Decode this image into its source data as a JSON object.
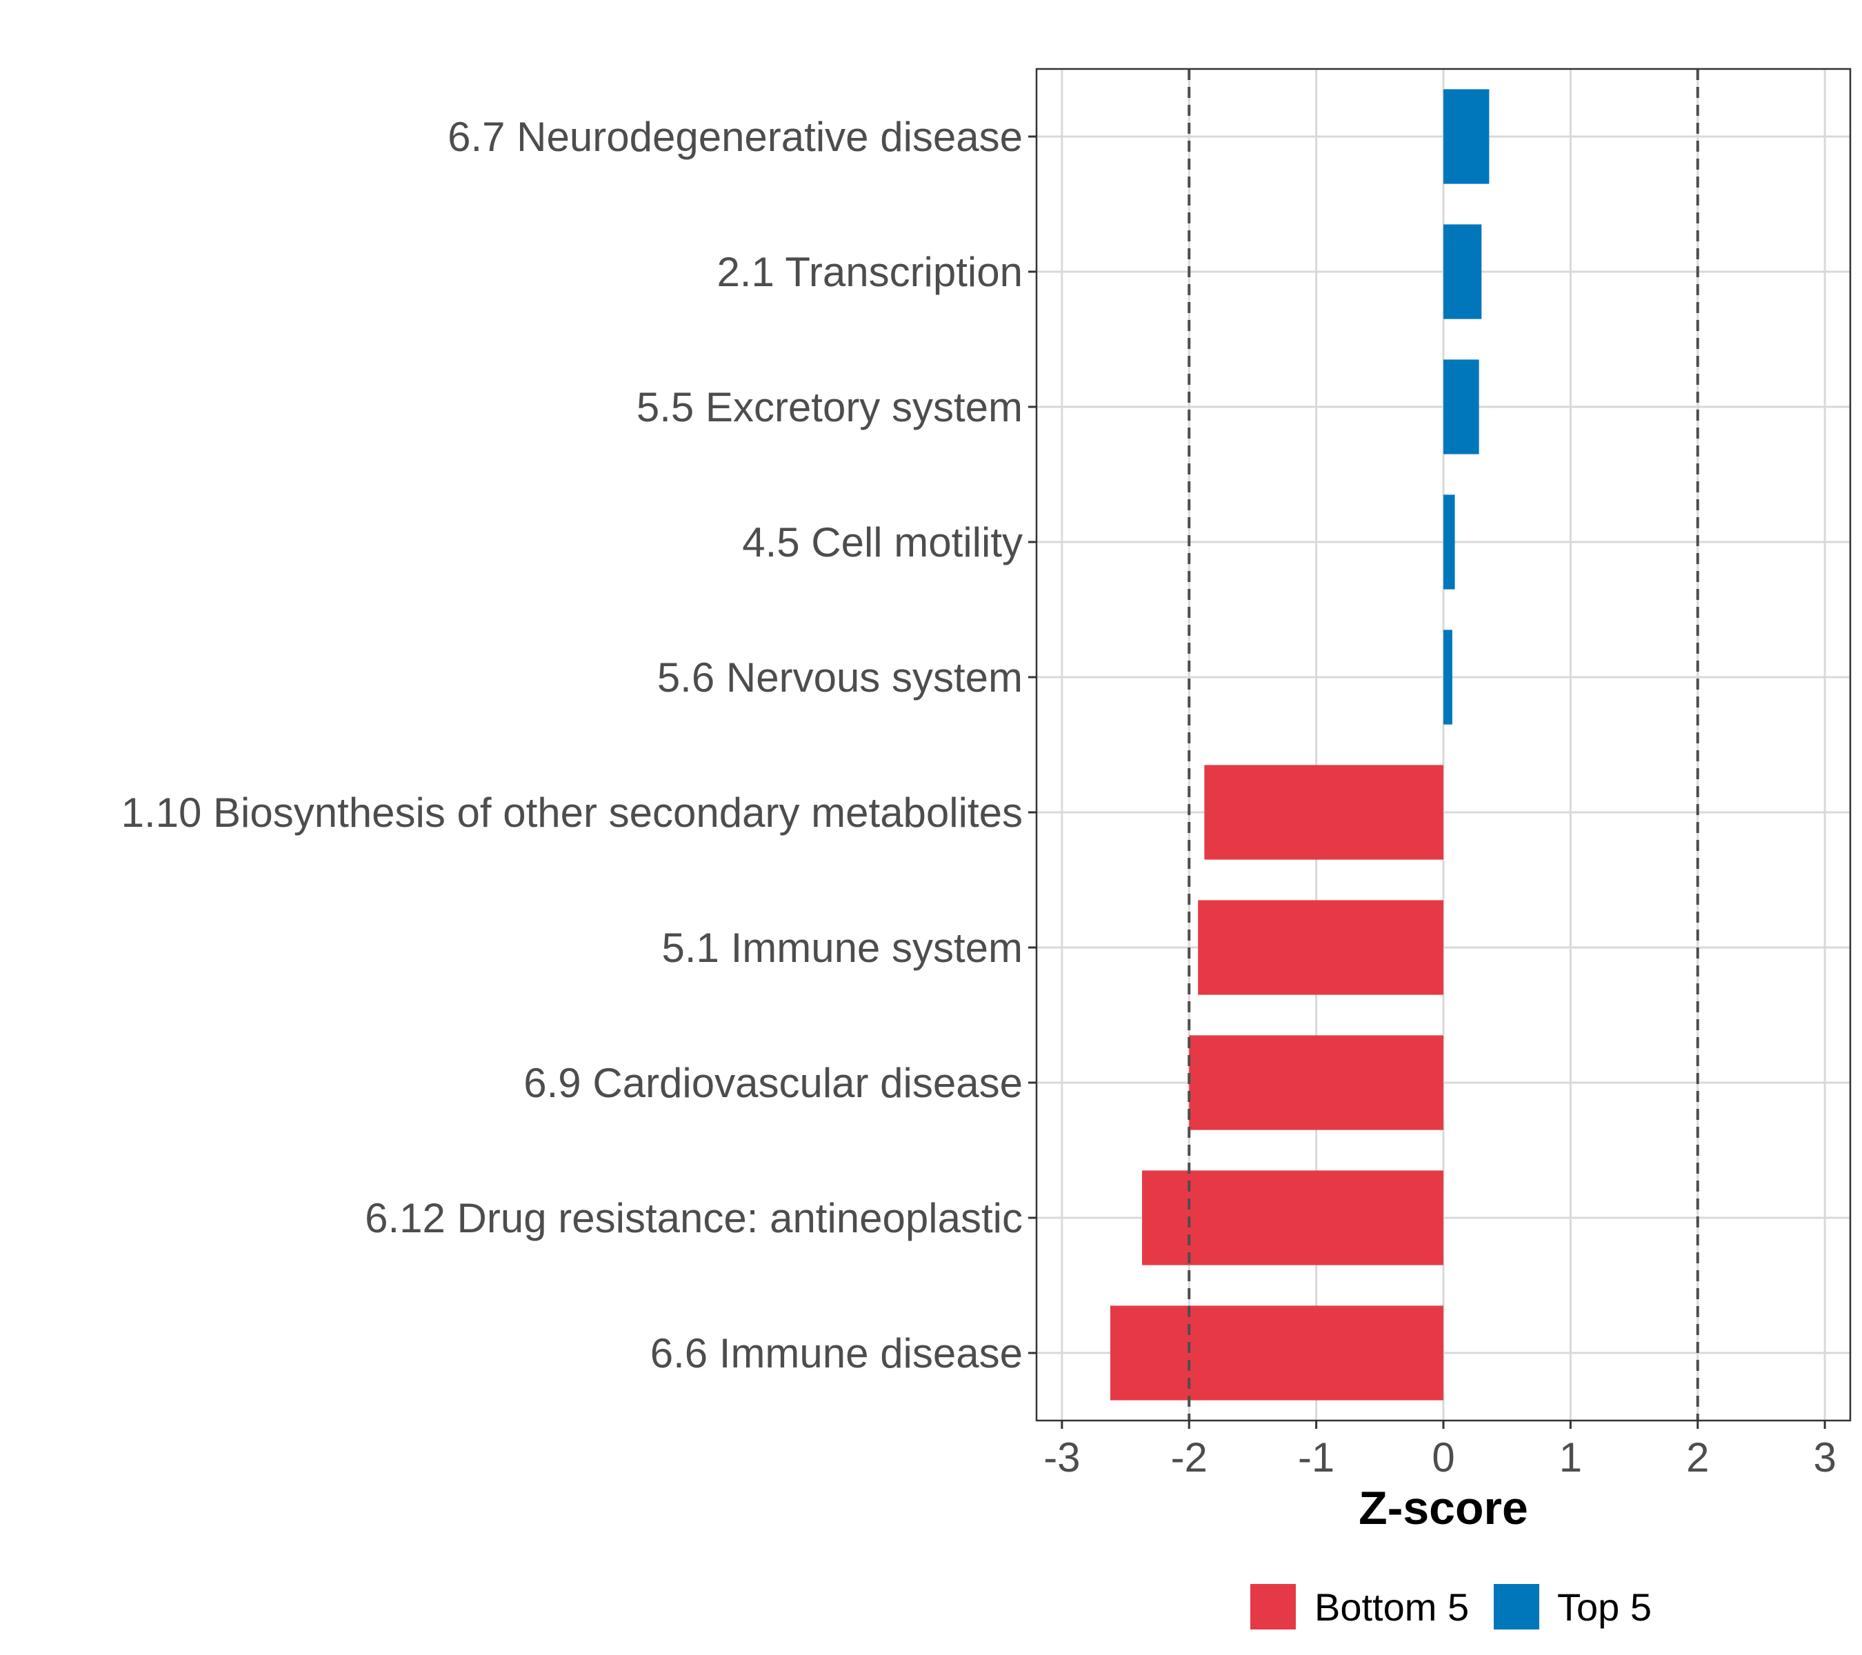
{
  "chart_data": {
    "type": "bar",
    "orientation": "horizontal",
    "title": "",
    "xlabel": "Z-score",
    "ylabel": "",
    "xlim": [
      -3.2,
      3.2
    ],
    "x_ticks": [
      "-3",
      "-2",
      "-1",
      "0",
      "1",
      "2",
      "3"
    ],
    "x_tick_values": [
      -3,
      -2,
      -1,
      0,
      1,
      2,
      3
    ],
    "reference_lines": [
      -2,
      2
    ],
    "grid": true,
    "categories": [
      "6.7 Neurodegenerative disease",
      "2.1 Transcription",
      "5.5 Excretory system",
      "4.5 Cell motility",
      "5.6 Nervous system",
      "1.10 Biosynthesis of other secondary metabolites",
      "5.1 Immune system",
      "6.9 Cardiovascular disease",
      "6.12 Drug resistance: antineoplastic",
      "6.6 Immune disease"
    ],
    "values": [
      0.36,
      0.3,
      0.28,
      0.09,
      0.07,
      -1.88,
      -1.93,
      -2.0,
      -2.37,
      -2.62
    ],
    "groups": [
      "Top 5",
      "Top 5",
      "Top 5",
      "Top 5",
      "Top 5",
      "Bottom 5",
      "Bottom 5",
      "Bottom 5",
      "Bottom 5",
      "Bottom 5"
    ],
    "legend": {
      "position": "bottom",
      "entries": [
        {
          "label": "Bottom 5",
          "color": "#e63946"
        },
        {
          "label": "Top 5",
          "color": "#0077bb"
        }
      ]
    }
  }
}
